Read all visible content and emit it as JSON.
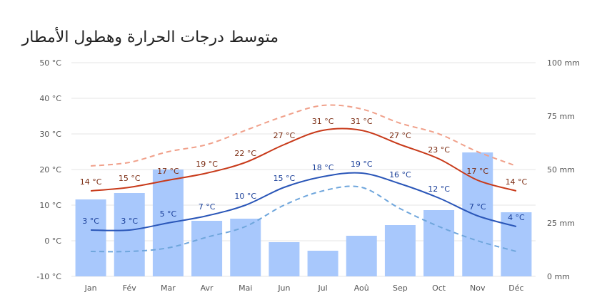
{
  "chart_data": {
    "type": "bar+line",
    "title": "متوسط درجات الحرارة وهطول الأمطار",
    "categories": [
      "Jan",
      "Fév",
      "Mar",
      "Avr",
      "Mai",
      "Jun",
      "Jul",
      "Aoû",
      "Sep",
      "Oct",
      "Nov",
      "Déc"
    ],
    "y_left": {
      "ticks": [
        "-10 °C",
        "0 °C",
        "10 °C",
        "20 °C",
        "30 °C",
        "40 °C",
        "50 °C"
      ],
      "min": -10,
      "max": 50
    },
    "y_right": {
      "ticks": [
        "0 mm",
        "25 mm",
        "50 mm",
        "75 mm",
        "100 mm"
      ],
      "min": 0,
      "max": 100
    },
    "precipitation_mm": [
      36,
      39,
      50,
      26,
      27,
      16,
      12,
      19,
      24,
      31,
      58,
      30
    ],
    "temp_max": [
      14,
      15,
      17,
      19,
      22,
      27,
      31,
      31,
      27,
      23,
      17,
      14
    ],
    "temp_max_labels": [
      "14 °C",
      "15 °C",
      "17 °C",
      "19 °C",
      "22 °C",
      "27 °C",
      "31 °C",
      "31 °C",
      "27 °C",
      "23 °C",
      "17 °C",
      "14 °C"
    ],
    "temp_min": [
      3,
      3,
      5,
      7,
      10,
      15,
      18,
      19,
      16,
      12,
      7,
      4
    ],
    "temp_min_labels": [
      "3 °C",
      "3 °C",
      "5 °C",
      "7 °C",
      "10 °C",
      "15 °C",
      "18 °C",
      "19 °C",
      "16 °C",
      "12 °C",
      "7 °C",
      "4 °C"
    ],
    "temp_max_record_dashed": [
      21,
      22,
      25,
      27,
      31,
      35,
      38,
      37,
      33,
      30,
      25,
      21
    ],
    "temp_min_record_dashed": [
      -3,
      -3,
      -2,
      1,
      4,
      10,
      14,
      15,
      9,
      4,
      0,
      -3
    ],
    "colors": {
      "bars": "#a8c8fc",
      "max_line": "#c83a1a",
      "max_label": "#7a2a10",
      "min_line": "#2a56b8",
      "min_label": "#1a3f99",
      "max_dashed": "#f0a08a",
      "min_dashed": "#6fa6dc",
      "grid": "#e6e6e6"
    }
  }
}
